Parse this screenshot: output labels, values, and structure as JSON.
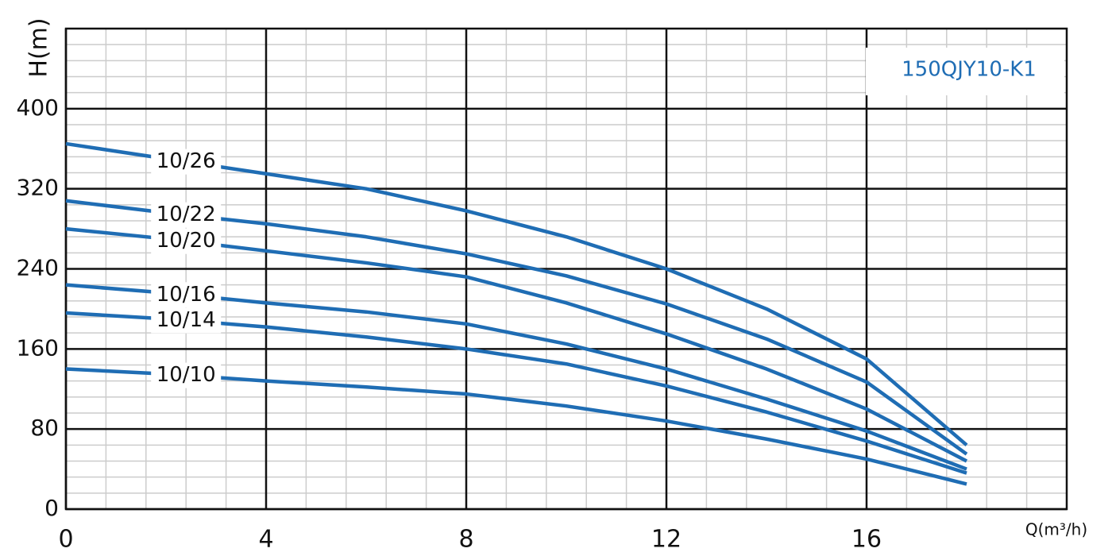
{
  "chart_data": {
    "type": "line",
    "title": "150QJY10-K1",
    "x_label": "Q(m³/h)",
    "y_label": "H(m)",
    "x": [
      0,
      2,
      4,
      6,
      8,
      10,
      12,
      14,
      16,
      18
    ],
    "series": [
      {
        "name": "10/26",
        "color": "#1f6db4",
        "values": [
          365,
          350,
          335,
          320,
          298,
          272,
          240,
          200,
          150,
          64
        ]
      },
      {
        "name": "10/22",
        "color": "#1f6db4",
        "values": [
          308,
          296,
          285,
          272,
          255,
          233,
          205,
          170,
          127,
          55
        ]
      },
      {
        "name": "10/20",
        "color": "#1f6db4",
        "values": [
          280,
          270,
          258,
          246,
          232,
          206,
          175,
          140,
          100,
          48
        ]
      },
      {
        "name": "10/16",
        "color": "#1f6db4",
        "values": [
          224,
          216,
          206,
          197,
          185,
          165,
          140,
          110,
          78,
          40
        ]
      },
      {
        "name": "10/14",
        "color": "#1f6db4",
        "values": [
          196,
          190,
          182,
          172,
          160,
          145,
          123,
          97,
          68,
          36
        ]
      },
      {
        "name": "10/10",
        "color": "#1f6db4",
        "values": [
          140,
          135,
          128,
          122,
          115,
          103,
          88,
          70,
          50,
          25
        ]
      }
    ],
    "xlim": [
      0,
      20
    ],
    "xticks": [
      0,
      4,
      8,
      12,
      16
    ],
    "ylim": [
      0,
      480
    ],
    "yticks": [
      0,
      80,
      160,
      240,
      320,
      400
    ],
    "grid": true
  }
}
